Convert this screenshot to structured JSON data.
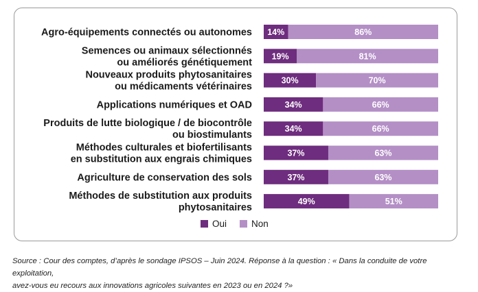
{
  "colors": {
    "oui": "#6e2d7e",
    "non": "#b48fc6",
    "label": "#1a1a1a",
    "bar_text": "#ffffff"
  },
  "chart_data": {
    "type": "bar",
    "orientation": "horizontal",
    "stacked": true,
    "percent_stacked": true,
    "categories": [
      [
        "Agro-équipements connectés ou autonomes"
      ],
      [
        "Semences ou animaux sélectionnés",
        "ou améliorés génétiquement"
      ],
      [
        "Nouveaux produits phytosanitaires",
        "ou médicaments vétérinaires"
      ],
      [
        "Applications numériques et OAD"
      ],
      [
        "Produits de lutte biologique / de biocontrôle",
        "ou biostimulants"
      ],
      [
        "Méthodes culturales et biofertilisants",
        "en substitution aux engrais chimiques"
      ],
      [
        "Agriculture de conservation des sols"
      ],
      [
        "Méthodes de substitution aux produits",
        "phytosanitaires"
      ]
    ],
    "series": [
      {
        "name": "Oui",
        "color": "#6e2d7e",
        "values": [
          14,
          19,
          30,
          34,
          34,
          37,
          37,
          49
        ]
      },
      {
        "name": "Non",
        "color": "#b48fc6",
        "values": [
          86,
          81,
          70,
          66,
          66,
          63,
          63,
          51
        ]
      }
    ],
    "value_suffix": "%",
    "xlim": [
      0,
      100
    ],
    "grid": false,
    "legend_position": "bottom-center"
  },
  "source_text": {
    "line1": "Source : Cour des comptes, d’après le sondage IPSOS – Juin 2024. Réponse à la question : « Dans la conduite de votre exploitation,",
    "line2": "avez-vous eu recours aux innovations agricoles suivantes en 2023 ou en 2024 ?»"
  }
}
